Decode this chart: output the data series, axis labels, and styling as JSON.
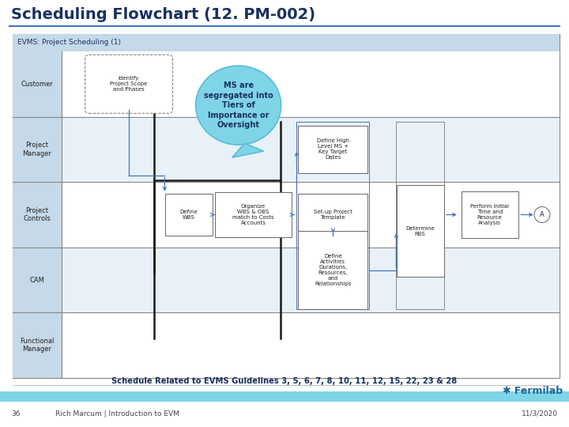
{
  "title": "Scheduling Flowchart (12. PM-002)",
  "title_color": "#1a3060",
  "title_fontsize": 14,
  "subtitle": "EVMS: Project Scheduling (1)",
  "bg_color": "#ffffff",
  "bubble_text": "MS are\nsegregated into\nTiers of\nImportance or\nOversight",
  "bubble_color": "#7fd4e8",
  "bubble_edge_color": "#5bbcd6",
  "row_labels": [
    "Customer",
    "Project\nManager",
    "Project\nControls",
    "CAM",
    "Functional\nManager"
  ],
  "label_bg": "#c5d9e8",
  "content_bg_odd": "#e8f1f7",
  "content_bg_even": "#ffffff",
  "header_bg": "#c5d9e8",
  "footer_text": "Schedule Related to EVMS Guidelines 3, 5, 6, 7, 8, 10, 11, 12, 15, 22, 23 & 28",
  "page_num": "36",
  "presenter": "Rich Marcum | Introduction to EVM",
  "date": "11/3/2020",
  "fermilab_color": "#1a6496",
  "blue_bar_color": "#7fd4e8",
  "arrow_color": "#4472c4",
  "box_edge_color": "#666666",
  "thick_line_color": "#1a1a1a"
}
